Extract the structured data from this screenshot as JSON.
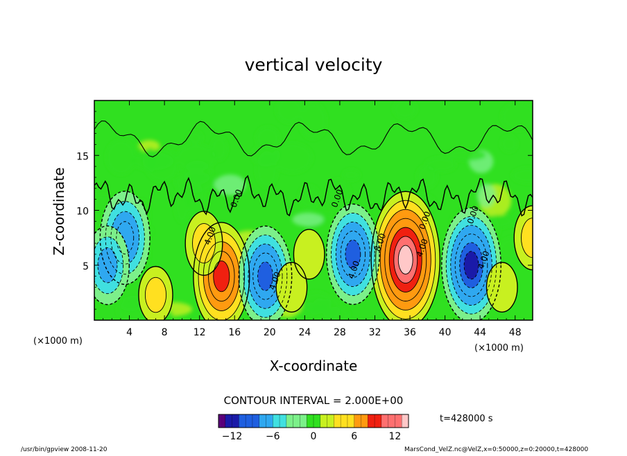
{
  "chart_data": {
    "type": "heatmap",
    "title": "vertical velocity",
    "xlabel": "X-coordinate",
    "ylabel": "Z-coordinate",
    "x_unit": "(×1000 m)",
    "x_unit_right": "(×1000 m)",
    "xlim": [
      0,
      50
    ],
    "ylim": [
      0,
      20
    ],
    "x_ticks": [
      4,
      8,
      12,
      16,
      20,
      24,
      28,
      32,
      36,
      40,
      44,
      48
    ],
    "y_ticks": [
      5,
      10,
      15
    ],
    "contour_interval_text": "CONTOUR INTERVAL = 2.000E+00",
    "contour_labels": [
      "0.00",
      "4.00",
      "8.00"
    ],
    "colorbar": {
      "min": -14,
      "max": 14,
      "ticks": [
        -12,
        -6,
        0,
        6,
        12
      ],
      "colors": [
        "#5a007a",
        "#1a1aa8",
        "#1f5fe0",
        "#2fa8f0",
        "#40e0e0",
        "#7cf08a",
        "#30e020",
        "#c8f020",
        "#ffe020",
        "#ff9a10",
        "#f02010",
        "#ff7070",
        "#ffc8c8"
      ]
    },
    "features": [
      {
        "kind": "updraft",
        "x": 35.5,
        "z": 5.5,
        "value": 14
      },
      {
        "kind": "updraft",
        "x": 14.5,
        "z": 4.0,
        "value": 10
      },
      {
        "kind": "updraft",
        "x": 12.5,
        "z": 7.0,
        "value": 4
      },
      {
        "kind": "updraft",
        "x": 50.0,
        "z": 7.5,
        "value": 4
      },
      {
        "kind": "downdraft",
        "x": 43.0,
        "z": 5.0,
        "value": -11
      },
      {
        "kind": "downdraft",
        "x": 19.5,
        "z": 4.0,
        "value": -9
      },
      {
        "kind": "downdraft",
        "x": 29.5,
        "z": 6.0,
        "value": -9
      },
      {
        "kind": "downdraft",
        "x": 3.5,
        "z": 7.5,
        "value": -8
      },
      {
        "kind": "downdraft",
        "x": 1.5,
        "z": 5.0,
        "value": -6
      },
      {
        "kind": "updraft",
        "x": 7.0,
        "z": 2.3,
        "value": 3
      },
      {
        "kind": "updraft",
        "x": 22.5,
        "z": 3.0,
        "value": 2
      },
      {
        "kind": "updraft",
        "x": 46.5,
        "z": 3.0,
        "value": 2
      },
      {
        "kind": "updraft",
        "x": 24.5,
        "z": 6.0,
        "value": 2
      }
    ],
    "grid": false
  },
  "annotations": {
    "time_label": "t=428000 s",
    "footer_left": "/usr/bin/gpview  2008-11-20",
    "footer_right": "MarsCond_VelZ.nc@VelZ,x=0:50000,z=0:20000,t=428000"
  }
}
